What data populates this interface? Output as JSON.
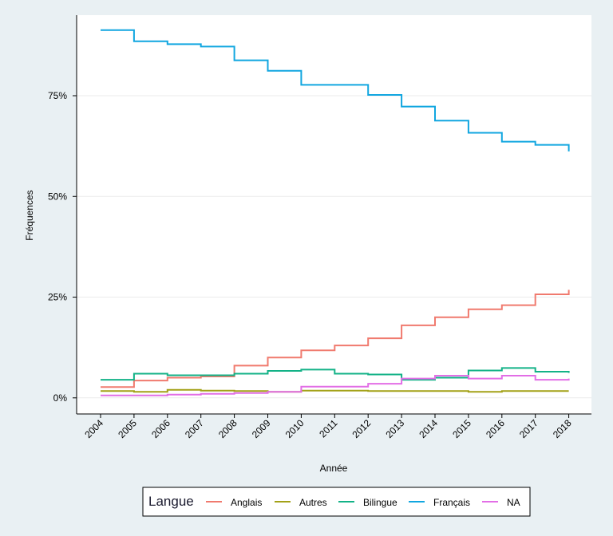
{
  "chart_data": {
    "type": "line",
    "step": true,
    "xlabel": "Année",
    "ylabel": "Fréquences",
    "x": [
      "2004",
      "2005",
      "2006",
      "2007",
      "2008",
      "2009",
      "2010",
      "2011",
      "2012",
      "2013",
      "2014",
      "2015",
      "2016",
      "2017",
      "2018"
    ],
    "ylim": [
      -0.04,
      0.95
    ],
    "yticks": [
      0,
      0.25,
      0.5,
      0.75
    ],
    "ytick_labels": [
      "0%",
      "25%",
      "50%",
      "75%"
    ],
    "grid": true,
    "legend_title": "Langue",
    "legend_position": "bottom",
    "series": [
      {
        "name": "Anglais",
        "color": "#f07a6e",
        "values": [
          0.027,
          0.043,
          0.05,
          0.053,
          0.08,
          0.1,
          0.118,
          0.13,
          0.148,
          0.18,
          0.2,
          0.22,
          0.23,
          0.257,
          0.268
        ]
      },
      {
        "name": "Autres",
        "color": "#a3a117",
        "values": [
          0.017,
          0.015,
          0.02,
          0.018,
          0.017,
          0.015,
          0.018,
          0.018,
          0.017,
          0.017,
          0.017,
          0.015,
          0.017,
          0.017,
          0.017
        ]
      },
      {
        "name": "Bilingue",
        "color": "#13b287",
        "values": [
          0.045,
          0.06,
          0.056,
          0.056,
          0.06,
          0.067,
          0.07,
          0.06,
          0.058,
          0.045,
          0.05,
          0.068,
          0.074,
          0.065,
          0.062
        ]
      },
      {
        "name": "Français",
        "color": "#11a6e0",
        "values": [
          0.913,
          0.885,
          0.878,
          0.872,
          0.838,
          0.812,
          0.777,
          0.777,
          0.752,
          0.723,
          0.688,
          0.658,
          0.636,
          0.628,
          0.612
        ]
      },
      {
        "name": "NA",
        "color": "#e26ee6",
        "values": [
          0.006,
          0.006,
          0.008,
          0.01,
          0.012,
          0.015,
          0.028,
          0.028,
          0.035,
          0.048,
          0.055,
          0.048,
          0.055,
          0.045,
          0.048
        ]
      }
    ]
  }
}
